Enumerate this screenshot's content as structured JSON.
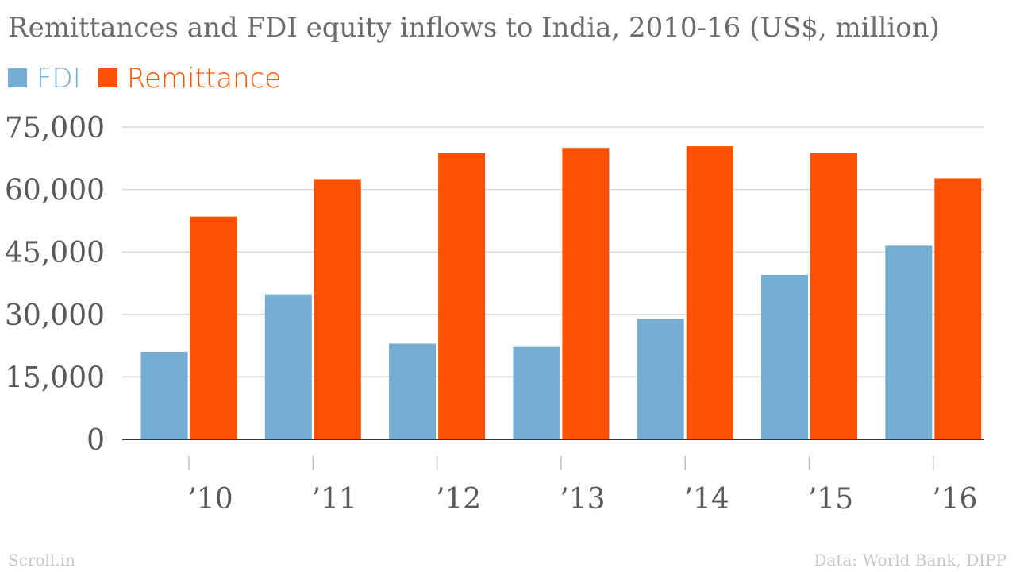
{
  "chart_data": {
    "type": "bar",
    "title": "Remittances and FDI equity inflows to India, 2010-16 (US$, million)",
    "categories": [
      "’10",
      "’11",
      "’12",
      "’13",
      "’14",
      "’15",
      "’16"
    ],
    "series": [
      {
        "name": "FDI",
        "color": "#74acd2",
        "values": [
          21000,
          34800,
          23000,
          22200,
          29000,
          39500,
          46500
        ]
      },
      {
        "name": "Remittance",
        "color": "#fd5000",
        "values": [
          53500,
          62500,
          68800,
          70000,
          70400,
          68900,
          62700
        ]
      }
    ],
    "yticks": [
      "0",
      "15,000",
      "30,000",
      "45,000",
      "60,000",
      "75,000"
    ],
    "ylim": [
      0,
      75000
    ],
    "grid": true,
    "legend": "top-left"
  },
  "footer": {
    "source_left": "Scroll.in",
    "source_right": "Data: World Bank, DIPP"
  }
}
